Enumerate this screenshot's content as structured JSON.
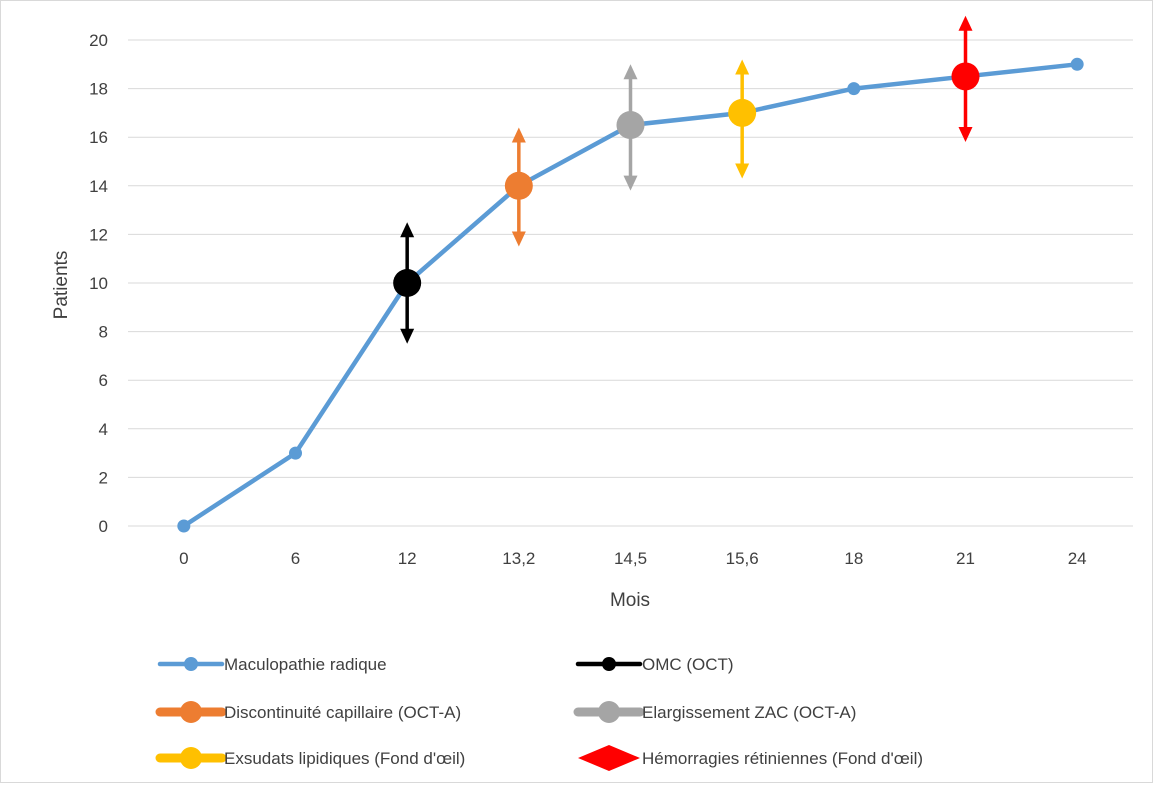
{
  "chart_data": {
    "type": "line",
    "title": "",
    "xlabel": "Mois",
    "ylabel": "Patients",
    "categories": [
      "0",
      "6",
      "12",
      "13,2",
      "14,5",
      "15,6",
      "18",
      "21",
      "24"
    ],
    "ylim": [
      0,
      20
    ],
    "yticks": [
      "0",
      "2",
      "4",
      "6",
      "8",
      "10",
      "12",
      "14",
      "16",
      "18",
      "20"
    ],
    "grid": true,
    "legend_position": "bottom",
    "series": [
      {
        "name": "Maculopathie radique",
        "color": "#5B9BD5",
        "values": [
          0,
          3,
          10,
          14,
          16.5,
          17,
          18,
          18.5,
          19
        ]
      },
      {
        "name": "OMC (OCT)",
        "color": "#000000",
        "category": "12",
        "value": 10,
        "range": [
          7.5,
          12.5
        ]
      },
      {
        "name": "Discontinuité capillaire (OCT-A)",
        "color": "#ED7D31",
        "category": "13,2",
        "value": 14,
        "range": [
          11.5,
          16.4
        ]
      },
      {
        "name": "Elargissement ZAC (OCT-A)",
        "color": "#A5A5A5",
        "category": "14,5",
        "value": 16.5,
        "range": [
          13.8,
          19
        ]
      },
      {
        "name": "Exsudats lipidiques (Fond d'œil)",
        "color": "#FFC000",
        "category": "15,6",
        "value": 17,
        "range": [
          14.3,
          19.2
        ]
      },
      {
        "name": "Hémorragies rétiniennes (Fond d'œil)",
        "color": "#FF0000",
        "category": "21",
        "value": 18.5,
        "range": [
          15.8,
          21
        ]
      }
    ]
  }
}
